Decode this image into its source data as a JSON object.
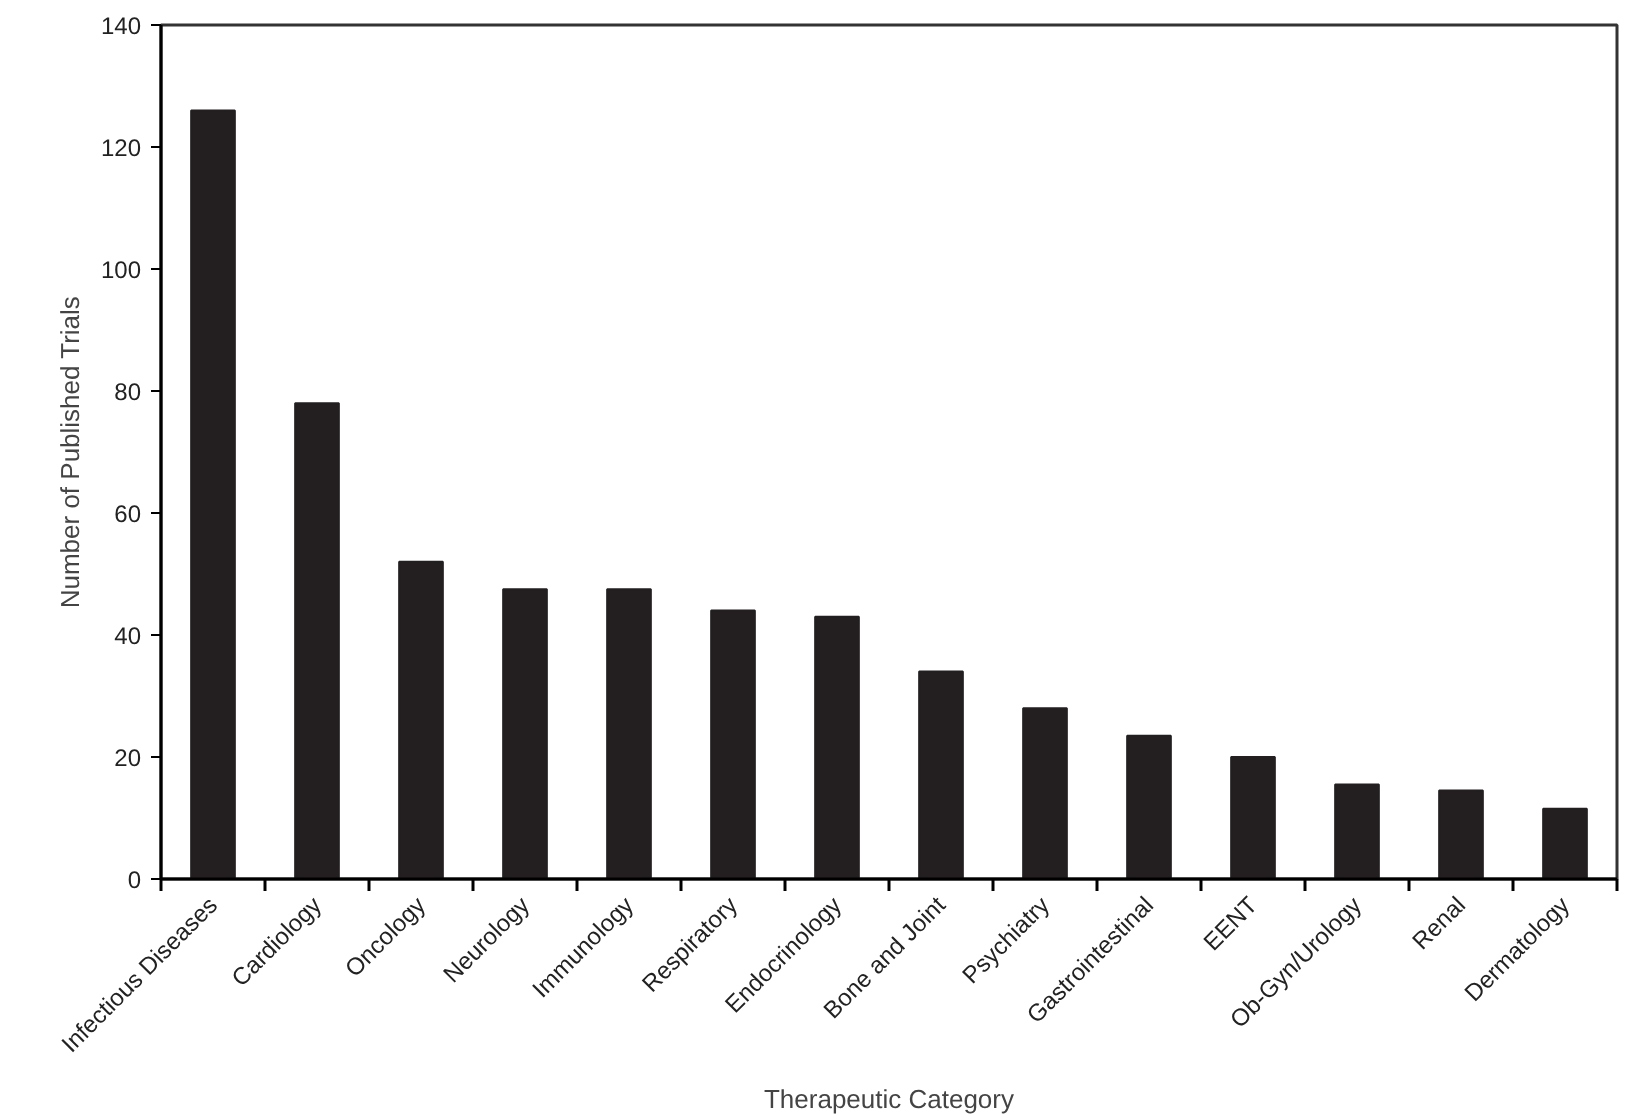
{
  "chart_data": {
    "type": "bar",
    "xlabel": "Therapeutic Category",
    "ylabel": "Number of Published Trials",
    "categories": [
      "Infectious Diseases",
      "Cardiology",
      "Oncology",
      "Neurology",
      "Immunology",
      "Respiratory",
      "Endocrinology",
      "Bone and Joint",
      "Psychiatry",
      "Gastrointestinal",
      "EENT",
      "Ob-Gyn/Urology",
      "Renal",
      "Dermatology"
    ],
    "values": [
      126,
      78,
      52,
      47.5,
      47.5,
      44,
      43,
      34,
      28,
      23.5,
      20,
      15.5,
      14.5,
      11.5
    ],
    "color": "#231f20",
    "ylim": [
      0,
      140
    ],
    "yticks": [
      0,
      20,
      40,
      60,
      80,
      100,
      120,
      140
    ],
    "grid": false
  }
}
